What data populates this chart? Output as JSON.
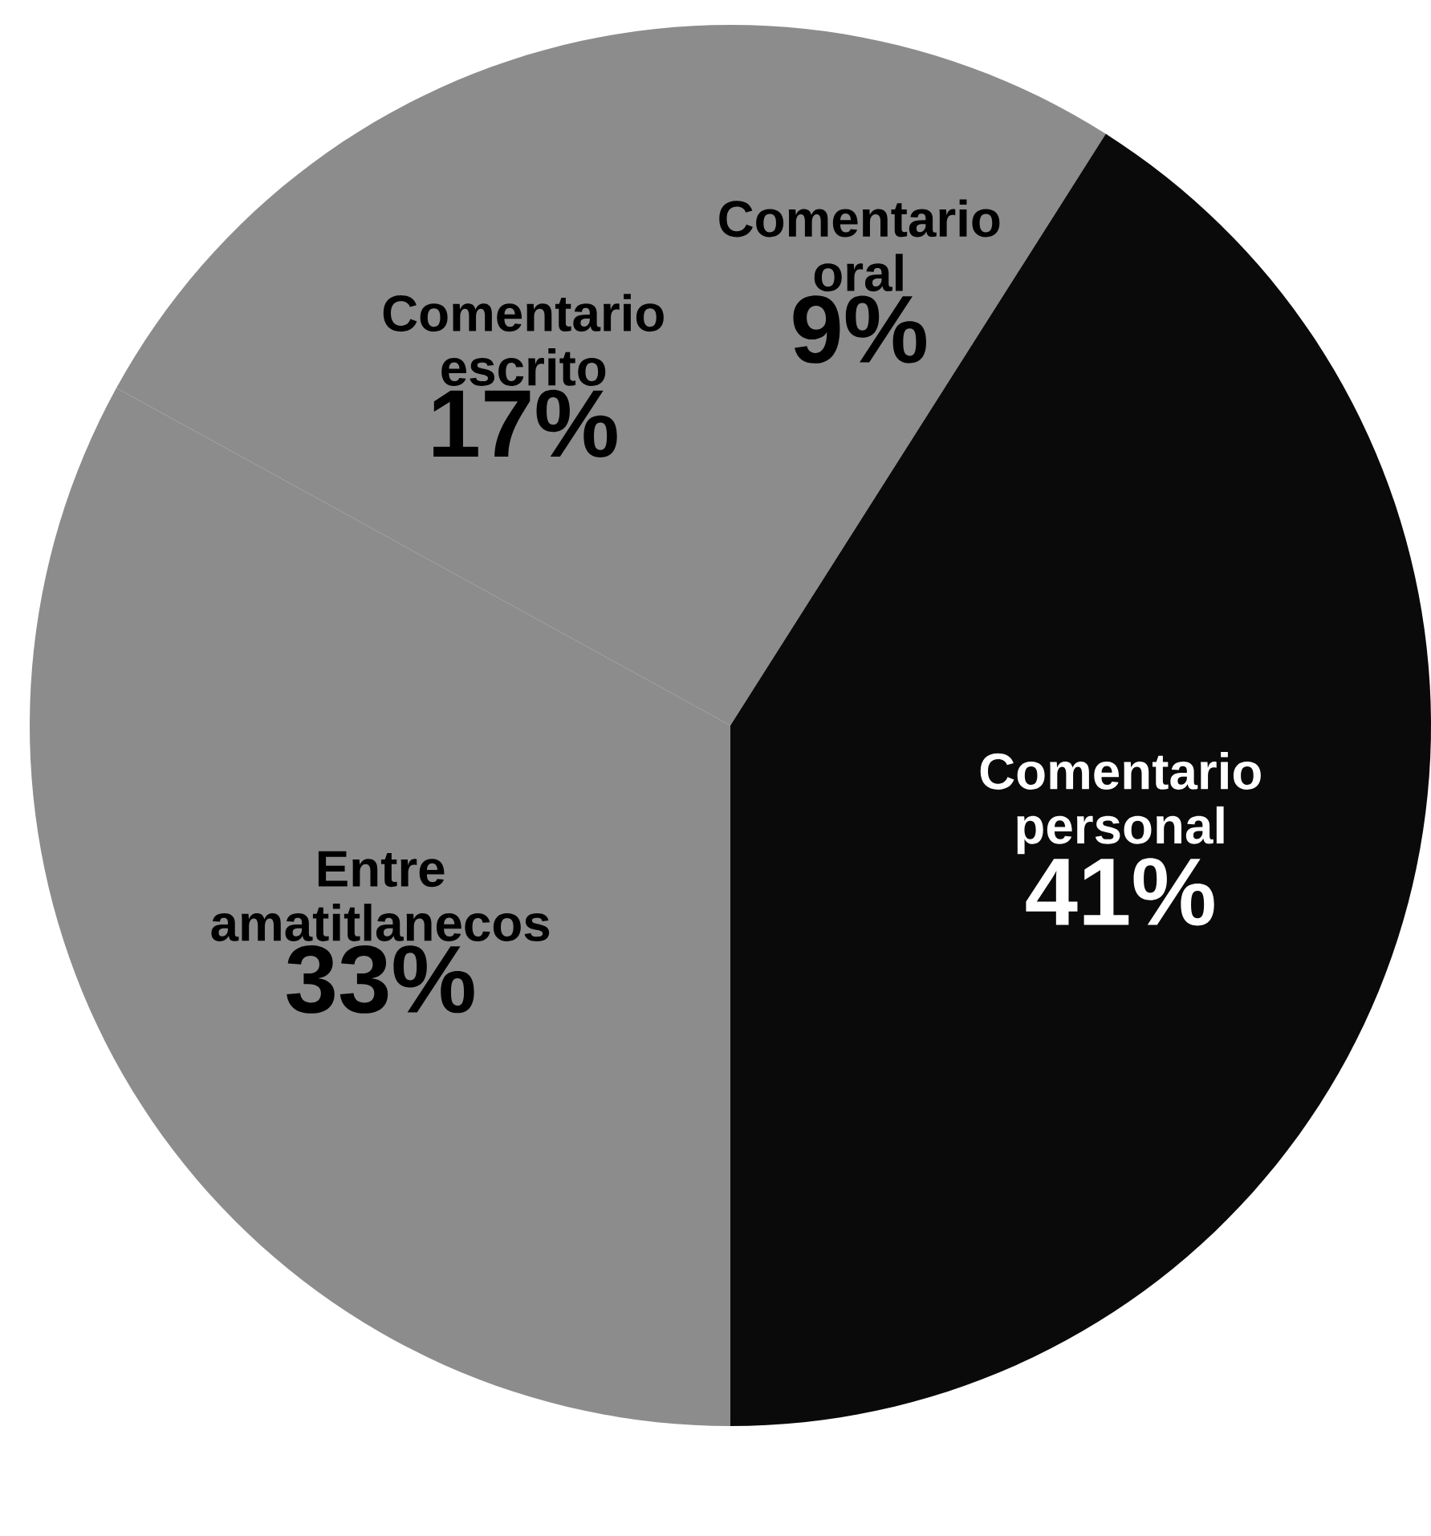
{
  "chart_data": {
    "type": "pie",
    "categories": [
      "Comentario oral",
      "Comentario personal",
      "Entre amatitlanecos",
      "Comentario escrito"
    ],
    "values": [
      9,
      41,
      33,
      17
    ],
    "value_labels": [
      "9%",
      "41%",
      "33%",
      "17%"
    ],
    "colors": [
      "#8c8c8c",
      "#0a0a0a",
      "#8c8c8c",
      "#8c8c8c"
    ]
  }
}
